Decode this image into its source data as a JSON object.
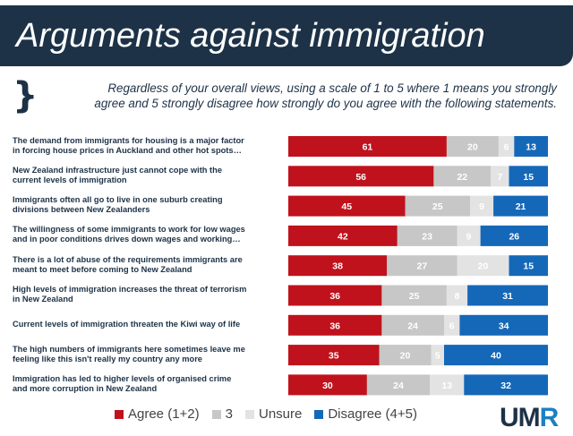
{
  "header": {
    "title": "Arguments against immigration"
  },
  "question": {
    "line1": "Regardless of your overall views, using a scale of 1 to 5 where 1 means you strongly",
    "line2": "agree and 5 strongly disagree how strongly do you agree with the following statements."
  },
  "logo": {
    "text_dark": "UM",
    "text_blue": "R"
  },
  "colors": {
    "agree": "#c0121c",
    "three": "#c7c7c7",
    "unsure": "#e3e3e3",
    "disagree": "#1568b8",
    "header_bg": "#1d3247"
  },
  "chart_data": {
    "type": "bar",
    "orientation": "horizontal",
    "stacked": true,
    "categories": [
      [
        "The demand from immigrants for housing is a major factor",
        "in forcing house prices in Auckland and other hot spots…"
      ],
      [
        "New Zealand infrastructure just cannot cope with the",
        "current levels of immigration"
      ],
      [
        "Immigrants often all go to live in one suburb creating",
        "divisions between New Zealanders"
      ],
      [
        "The willingness of some immigrants to work for low wages",
        "and in poor conditions drives down wages and working…"
      ],
      [
        "There is a lot of abuse of the requirements immigrants are",
        "meant to meet before coming to New Zealand"
      ],
      [
        "High levels of immigration increases the threat of terrorism",
        "in New Zealand"
      ],
      [
        "Current levels of immigration threaten the Kiwi way of life"
      ],
      [
        "The high numbers of immigrants here sometimes leave me",
        "feeling like this isn't really my country any more"
      ],
      [
        "Immigration has led to higher levels of organised crime",
        "and more corruption in New Zealand"
      ]
    ],
    "series": [
      {
        "name": "Agree (1+2)",
        "values": [
          61,
          56,
          45,
          42,
          38,
          36,
          36,
          35,
          30
        ]
      },
      {
        "name": "3",
        "values": [
          20,
          22,
          25,
          23,
          27,
          25,
          24,
          20,
          24
        ]
      },
      {
        "name": "Unsure",
        "values": [
          6,
          7,
          9,
          9,
          20,
          8,
          6,
          5,
          13
        ]
      },
      {
        "name": "Disagree (4+5)",
        "values": [
          13,
          15,
          21,
          26,
          15,
          31,
          34,
          40,
          32
        ]
      }
    ],
    "xlim": [
      0,
      100
    ],
    "legend_position": "bottom",
    "grid": false
  }
}
